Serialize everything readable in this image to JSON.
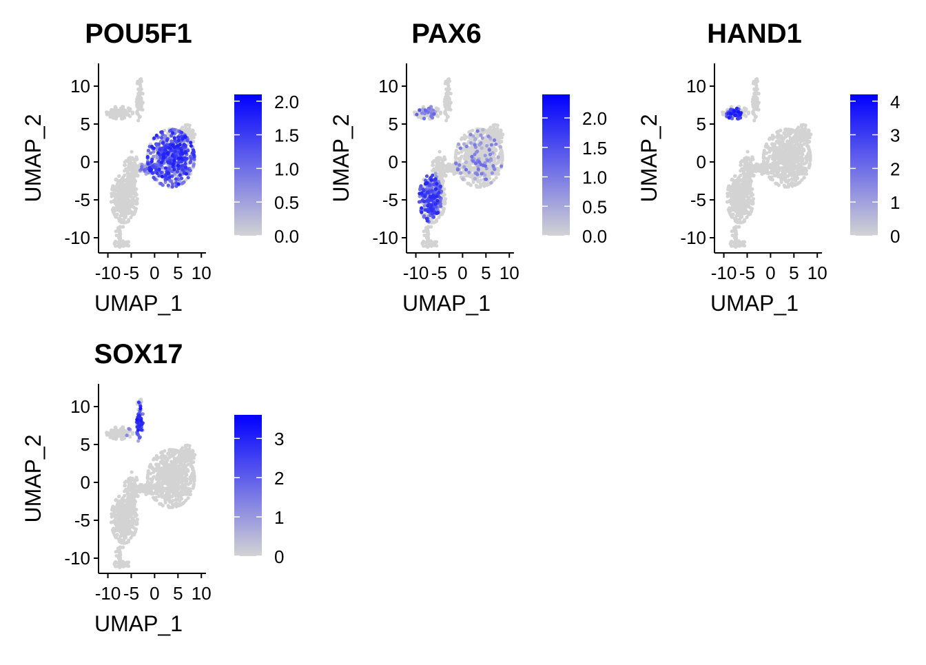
{
  "colors": {
    "low": "#D3D3D3",
    "high": "#0000FF",
    "axis": "#000000"
  },
  "chart_data": [
    {
      "type": "scatter",
      "title": "POU5F1",
      "xlabel": "UMAP_1",
      "ylabel": "UMAP_2",
      "xlim": [
        -12,
        11
      ],
      "ylim": [
        -12,
        13
      ],
      "xticks": [
        -10,
        -5,
        0,
        5,
        10
      ],
      "xtick_labels": [
        "-10",
        "-5",
        "0",
        "5",
        "10"
      ],
      "yticks": [
        -10,
        -5,
        0,
        5,
        10
      ],
      "ytick_labels": [
        "-10",
        "-5",
        "0",
        "5",
        "10"
      ],
      "legend": {
        "min": 0.0,
        "max": 2.1,
        "ticks": [
          0.0,
          0.5,
          1.0,
          1.5,
          2.0
        ],
        "labels": [
          "0.0",
          "0.5",
          "1.0",
          "1.5",
          "2.0"
        ]
      },
      "expression_regions": [
        {
          "x": 3.5,
          "y": 0.5,
          "rx": 5.0,
          "ry": 3.8,
          "density": 0.7,
          "max": 1.8
        },
        {
          "x": -1.5,
          "y": -0.8,
          "rx": 2.0,
          "ry": 0.8,
          "density": 0.3,
          "max": 1.2
        }
      ]
    },
    {
      "type": "scatter",
      "title": "PAX6",
      "xlabel": "UMAP_1",
      "ylabel": "UMAP_2",
      "xlim": [
        -12,
        11
      ],
      "ylim": [
        -12,
        13
      ],
      "xticks": [
        -10,
        -5,
        0,
        5,
        10
      ],
      "xtick_labels": [
        "-10",
        "-5",
        "0",
        "5",
        "10"
      ],
      "yticks": [
        -10,
        -5,
        0,
        5,
        10
      ],
      "ytick_labels": [
        "-10",
        "-5",
        "0",
        "5",
        "10"
      ],
      "legend": {
        "min": 0.0,
        "max": 2.4,
        "ticks": [
          0.0,
          0.5,
          1.0,
          1.5,
          2.0
        ],
        "labels": [
          "0.0",
          "0.5",
          "1.0",
          "1.5",
          "2.0"
        ]
      },
      "expression_regions": [
        {
          "x": -7.0,
          "y": -4.5,
          "rx": 2.6,
          "ry": 3.4,
          "density": 0.6,
          "max": 2.0
        },
        {
          "x": -8.0,
          "y": 6.5,
          "rx": 2.5,
          "ry": 0.9,
          "density": 0.25,
          "max": 1.5
        },
        {
          "x": 3.5,
          "y": 0.5,
          "rx": 5.0,
          "ry": 3.8,
          "density": 0.15,
          "max": 1.2
        }
      ]
    },
    {
      "type": "scatter",
      "title": "HAND1",
      "xlabel": "UMAP_1",
      "ylabel": "UMAP_2",
      "xlim": [
        -12,
        11
      ],
      "ylim": [
        -12,
        13
      ],
      "xticks": [
        -10,
        -5,
        0,
        5,
        10
      ],
      "xtick_labels": [
        "-10",
        "-5",
        "0",
        "5",
        "10"
      ],
      "yticks": [
        -10,
        -5,
        0,
        5,
        10
      ],
      "ytick_labels": [
        "-10",
        "-5",
        "0",
        "5",
        "10"
      ],
      "legend": {
        "min": 0,
        "max": 4.2,
        "ticks": [
          0,
          1,
          2,
          3,
          4
        ],
        "labels": [
          "0",
          "1",
          "2",
          "3",
          "4"
        ]
      },
      "expression_regions": [
        {
          "x": -7.8,
          "y": 6.2,
          "rx": 1.6,
          "ry": 1.0,
          "density": 0.8,
          "max": 3.8
        }
      ]
    },
    {
      "type": "scatter",
      "title": "SOX17",
      "xlabel": "UMAP_1",
      "ylabel": "UMAP_2",
      "xlim": [
        -12,
        11
      ],
      "ylim": [
        -12,
        13
      ],
      "xticks": [
        -10,
        -5,
        0,
        5,
        10
      ],
      "xtick_labels": [
        "-10",
        "-5",
        "0",
        "5",
        "10"
      ],
      "yticks": [
        -10,
        -5,
        0,
        5,
        10
      ],
      "ytick_labels": [
        "-10",
        "-5",
        "0",
        "5",
        "10"
      ],
      "legend": {
        "min": 0,
        "max": 3.6,
        "ticks": [
          0,
          1,
          2,
          3
        ],
        "labels": [
          "0",
          "1",
          "2",
          "3"
        ]
      },
      "expression_regions": [
        {
          "x": -3.2,
          "y": 7.8,
          "rx": 0.8,
          "ry": 3.0,
          "density": 0.85,
          "max": 3.2
        },
        {
          "x": -5.5,
          "y": 6.5,
          "rx": 1.2,
          "ry": 0.8,
          "density": 0.3,
          "max": 1.5
        }
      ]
    }
  ]
}
